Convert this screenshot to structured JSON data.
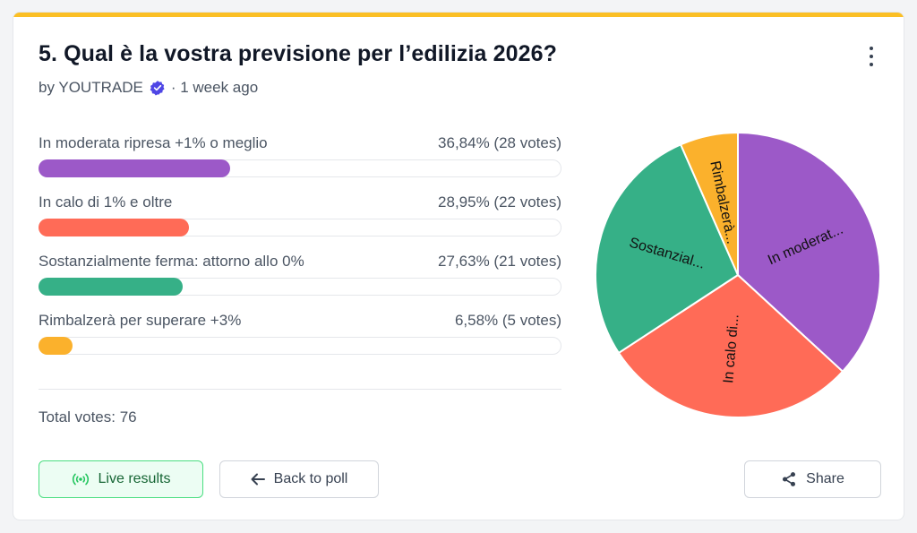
{
  "poll": {
    "title": "5. Qual è la vostra previsione per l’edilizia 2026?",
    "byline": "by YOUTRADE",
    "time": "· 1 week ago",
    "total": "Total votes: 76",
    "accent_color": "#fbbf24"
  },
  "buttons": {
    "live": "Live results",
    "back": "Back to poll",
    "share": "Share"
  },
  "chart_data": {
    "type": "pie",
    "categories": [
      "In moderata ripresa +1% o meglio",
      "In calo di 1% e oltre",
      "Sostanzialmente ferma: attorno allo 0%",
      "Rimbalzerà per superare +3%"
    ],
    "values": [
      28,
      22,
      21,
      5
    ],
    "percent_labels": [
      "36,84% (28 votes)",
      "28,95% (22 votes)",
      "27,63% (21 votes)",
      "6,58% (5 votes)"
    ],
    "slice_labels": [
      "In moderat...",
      "In calo di...",
      "Sostanzial...",
      "Rimbalzerà..."
    ],
    "colors": [
      "#9c59c8",
      "#ff6b57",
      "#36b087",
      "#fbb12c"
    ]
  }
}
